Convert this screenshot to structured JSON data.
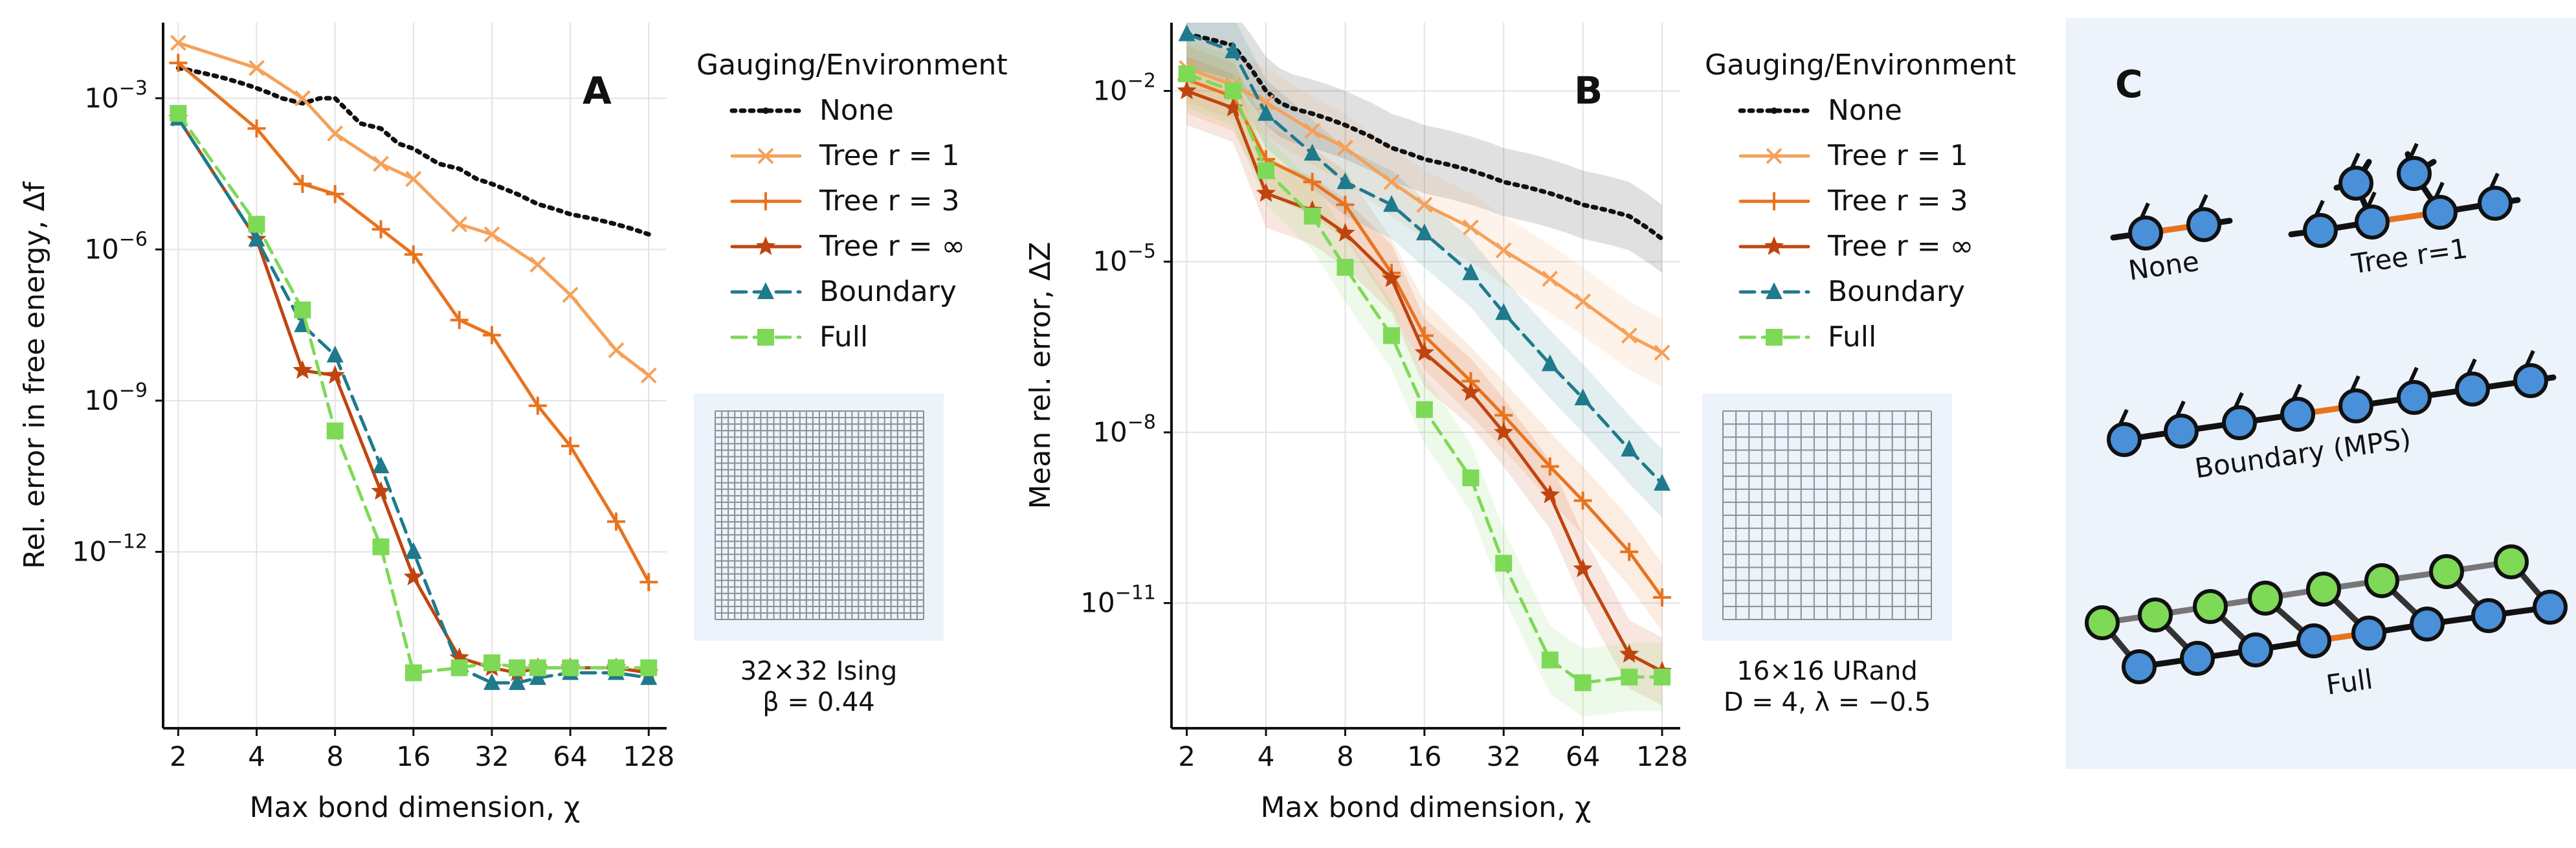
{
  "chart_data": [
    {
      "id": "A",
      "type": "line",
      "panel_label": "A",
      "title": "",
      "xlabel": "Max bond dimension, χ",
      "ylabel": "Rel. error in free energy, Δf",
      "xscale": "log2",
      "yscale": "log10",
      "x_ticks": [
        2,
        4,
        8,
        16,
        32,
        64,
        128
      ],
      "x_tick_labels": [
        "2",
        "4",
        "8",
        "16",
        "32",
        "64",
        "128"
      ],
      "y_tick_exponents": [
        -3,
        -6,
        -9,
        -12
      ],
      "y_tick_labels": [
        {
          "base": "10",
          "exp": "−3"
        },
        {
          "base": "10",
          "exp": "−6"
        },
        {
          "base": "10",
          "exp": "−9"
        },
        {
          "base": "10",
          "exp": "−12"
        }
      ],
      "xlim": [
        1.75,
        150
      ],
      "ylim_log10": [
        -15.5,
        -1.5
      ],
      "legend_title": "Gauging/Environment",
      "legend_location": "outside-right",
      "inset_caption_line1": "32×32 Ising",
      "inset_caption_line2": "β = 0.44",
      "series": [
        {
          "name": "None",
          "legend_label": "None",
          "color": "#111111",
          "dash": "dotted",
          "marker": "dot",
          "x": [
            2,
            2.5,
            3,
            3.5,
            4,
            4.5,
            5,
            6,
            7,
            8,
            10,
            12,
            14,
            16,
            20,
            24,
            28,
            32,
            40,
            48,
            56,
            64,
            80,
            96,
            112,
            128
          ],
          "log10_y": [
            -2.4,
            -2.5,
            -2.6,
            -2.7,
            -2.8,
            -2.9,
            -3.0,
            -3.1,
            -3.0,
            -3.0,
            -3.5,
            -3.6,
            -3.9,
            -4.0,
            -4.3,
            -4.4,
            -4.6,
            -4.7,
            -4.9,
            -5.1,
            -5.2,
            -5.3,
            -5.4,
            -5.5,
            -5.6,
            -5.7
          ]
        },
        {
          "name": "Tree r=1",
          "legend_label": "Tree r = 1",
          "color": "#f5a15a",
          "dash": "solid",
          "marker": "x",
          "x": [
            2,
            4,
            6,
            8,
            12,
            16,
            24,
            32,
            48,
            64,
            96,
            128
          ],
          "log10_y": [
            -1.9,
            -2.4,
            -3.0,
            -3.7,
            -4.3,
            -4.6,
            -5.5,
            -5.7,
            -6.3,
            -6.9,
            -8.0,
            -8.5
          ]
        },
        {
          "name": "Tree r=3",
          "legend_label": "Tree r = 3",
          "color": "#e8731f",
          "dash": "solid",
          "marker": "plus",
          "x": [
            2,
            4,
            6,
            8,
            12,
            16,
            24,
            32,
            48,
            64,
            96,
            128
          ],
          "log10_y": [
            -2.3,
            -3.6,
            -4.7,
            -4.9,
            -5.6,
            -6.1,
            -7.4,
            -7.7,
            -9.1,
            -9.9,
            -11.4,
            -12.6
          ]
        },
        {
          "name": "Tree r=inf",
          "legend_label": "Tree r = ∞",
          "color": "#c0440f",
          "dash": "solid",
          "marker": "star",
          "x": [
            2,
            4,
            6,
            8,
            12,
            16,
            24,
            32,
            40,
            48,
            64,
            96,
            128
          ],
          "log10_y": [
            -3.4,
            -5.8,
            -8.4,
            -8.5,
            -10.8,
            -12.5,
            -14.1,
            -14.3,
            -14.4,
            -14.3,
            -14.3,
            -14.3,
            -14.4
          ]
        },
        {
          "name": "Boundary",
          "legend_label": "Boundary",
          "color": "#1f7a8c",
          "dash": "dashed",
          "marker": "triangle",
          "x": [
            2,
            4,
            6,
            8,
            12,
            16,
            24,
            32,
            40,
            48,
            64,
            96,
            128
          ],
          "log10_y": [
            -3.4,
            -5.8,
            -7.5,
            -8.1,
            -10.3,
            -12.0,
            -14.3,
            -14.6,
            -14.6,
            -14.5,
            -14.4,
            -14.4,
            -14.5
          ]
        },
        {
          "name": "Full",
          "legend_label": "Full",
          "color": "#7ed957",
          "dash": "dashed",
          "marker": "square",
          "x": [
            2,
            4,
            6,
            8,
            12,
            16,
            24,
            32,
            40,
            48,
            64,
            96,
            128
          ],
          "log10_y": [
            -3.3,
            -5.5,
            -7.2,
            -9.6,
            -11.9,
            -14.4,
            -14.3,
            -14.2,
            -14.3,
            -14.3,
            -14.3,
            -14.3,
            -14.3
          ]
        }
      ]
    },
    {
      "id": "B",
      "type": "line",
      "panel_label": "B",
      "title": "",
      "xlabel": "Max bond dimension, χ",
      "ylabel": "Mean rel. error, ΔZ",
      "xscale": "log2",
      "yscale": "log10",
      "x_ticks": [
        2,
        4,
        8,
        16,
        32,
        64,
        128
      ],
      "x_tick_labels": [
        "2",
        "4",
        "8",
        "16",
        "32",
        "64",
        "128"
      ],
      "y_tick_exponents": [
        -2,
        -5,
        -8,
        -11
      ],
      "y_tick_labels": [
        {
          "base": "10",
          "exp": "−2"
        },
        {
          "base": "10",
          "exp": "−5"
        },
        {
          "base": "10",
          "exp": "−8"
        },
        {
          "base": "10",
          "exp": "−11"
        }
      ],
      "xlim": [
        1.75,
        150
      ],
      "ylim_log10": [
        -13.2,
        -0.8
      ],
      "legend_title": "Gauging/Environment",
      "legend_location": "outside-right",
      "inset_caption_line1": "16×16 URand",
      "inset_caption_line2": "D = 4, λ = −0.5",
      "band_width_log10": 0.6,
      "series": [
        {
          "name": "None",
          "legend_label": "None",
          "color": "#111111",
          "dash": "dotted",
          "marker": "dot",
          "x": [
            2,
            2.5,
            3,
            3.5,
            4,
            4.5,
            5,
            6,
            7,
            8,
            10,
            12,
            14,
            16,
            20,
            24,
            28,
            32,
            40,
            48,
            56,
            64,
            80,
            96,
            112,
            128
          ],
          "log10_y": [
            -1.0,
            -1.1,
            -1.2,
            -1.6,
            -2.0,
            -2.2,
            -2.3,
            -2.4,
            -2.5,
            -2.6,
            -2.8,
            -3.0,
            -3.1,
            -3.2,
            -3.3,
            -3.4,
            -3.5,
            -3.6,
            -3.7,
            -3.8,
            -3.9,
            -4.0,
            -4.1,
            -4.2,
            -4.4,
            -4.6
          ]
        },
        {
          "name": "Tree r=1",
          "legend_label": "Tree r = 1",
          "color": "#f5a15a",
          "dash": "solid",
          "marker": "x",
          "x": [
            2,
            3,
            4,
            6,
            8,
            12,
            16,
            24,
            32,
            48,
            64,
            96,
            128
          ],
          "log10_y": [
            -1.6,
            -1.9,
            -2.2,
            -2.7,
            -3.0,
            -3.6,
            -4.0,
            -4.4,
            -4.8,
            -5.3,
            -5.7,
            -6.3,
            -6.6
          ]
        },
        {
          "name": "Tree r=3",
          "legend_label": "Tree r = 3",
          "color": "#e8731f",
          "dash": "solid",
          "marker": "plus",
          "x": [
            2,
            3,
            4,
            6,
            8,
            12,
            16,
            24,
            32,
            48,
            64,
            96,
            128
          ],
          "log10_y": [
            -1.8,
            -2.1,
            -3.2,
            -3.6,
            -4.0,
            -5.2,
            -6.3,
            -7.1,
            -7.7,
            -8.6,
            -9.2,
            -10.1,
            -10.9
          ]
        },
        {
          "name": "Tree r=inf",
          "legend_label": "Tree r = ∞",
          "color": "#c0440f",
          "dash": "solid",
          "marker": "star",
          "x": [
            2,
            3,
            4,
            6,
            8,
            12,
            16,
            24,
            32,
            48,
            64,
            96,
            128
          ],
          "log10_y": [
            -2.0,
            -2.3,
            -3.8,
            -4.1,
            -4.5,
            -5.3,
            -6.6,
            -7.3,
            -8.0,
            -9.1,
            -10.4,
            -11.9,
            -12.2
          ]
        },
        {
          "name": "Boundary",
          "legend_label": "Boundary",
          "color": "#1f7a8c",
          "dash": "dashed",
          "marker": "triangle",
          "x": [
            2,
            3,
            4,
            6,
            8,
            12,
            16,
            24,
            32,
            48,
            64,
            96,
            128
          ],
          "log10_y": [
            -1.0,
            -1.3,
            -2.4,
            -3.1,
            -3.6,
            -4.0,
            -4.5,
            -5.2,
            -5.9,
            -6.8,
            -7.4,
            -8.3,
            -8.9
          ]
        },
        {
          "name": "Full",
          "legend_label": "Full",
          "color": "#7ed957",
          "dash": "dashed",
          "marker": "square",
          "x": [
            2,
            3,
            4,
            6,
            8,
            12,
            16,
            24,
            32,
            48,
            64,
            96,
            128
          ],
          "log10_y": [
            -1.7,
            -2.0,
            -3.4,
            -4.2,
            -5.1,
            -6.3,
            -7.6,
            -8.8,
            -10.3,
            -12.0,
            -12.4,
            -12.3,
            -12.3
          ]
        }
      ]
    }
  ],
  "diagram_c": {
    "panel_label": "C",
    "background": "#edf3fb",
    "node_colors": {
      "blue": "#4a90d9",
      "green": "#7ed957",
      "bond_highlight": "#e8731f"
    },
    "labels": {
      "none": "None",
      "tree": "Tree r=1",
      "boundary": "Boundary (MPS)",
      "full": "Full"
    }
  }
}
